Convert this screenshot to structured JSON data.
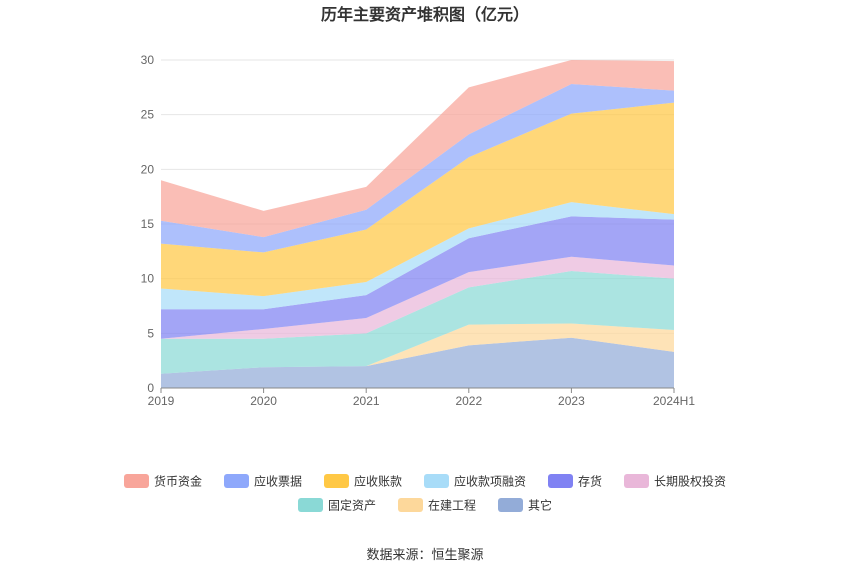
{
  "chart_data": {
    "type": "area",
    "stacked": true,
    "title": "历年主要资产堆积图（亿元）",
    "source": "数据来源：恒生聚源",
    "categories": [
      "2019",
      "2020",
      "2021",
      "2022",
      "2023",
      "2024H1"
    ],
    "ylim": [
      0,
      30
    ],
    "yticks": [
      0,
      5,
      10,
      15,
      20,
      25,
      30
    ],
    "grid": true,
    "legend_position": "bottom",
    "series": [
      {
        "name": "其它",
        "color": "#93acd8",
        "values": [
          1.3,
          1.9,
          2.0,
          3.9,
          4.6,
          3.3
        ]
      },
      {
        "name": "在建工程",
        "color": "#fdd89b",
        "values": [
          0.0,
          0.0,
          0.0,
          1.9,
          1.3,
          2.0
        ]
      },
      {
        "name": "固定资产",
        "color": "#8ad9d6",
        "values": [
          3.2,
          2.6,
          3.0,
          3.4,
          4.8,
          4.7
        ]
      },
      {
        "name": "长期股权投资",
        "color": "#e9b7d9",
        "values": [
          0.0,
          0.9,
          1.4,
          1.4,
          1.3,
          1.2
        ]
      },
      {
        "name": "存货",
        "color": "#8082f3",
        "values": [
          2.7,
          1.8,
          2.1,
          3.1,
          3.7,
          4.2
        ]
      },
      {
        "name": "应收款项融资",
        "color": "#a8dcf8",
        "values": [
          1.9,
          1.2,
          1.2,
          0.9,
          1.3,
          0.5
        ]
      },
      {
        "name": "应收账款",
        "color": "#ffc845",
        "values": [
          4.1,
          4.0,
          4.8,
          6.5,
          8.1,
          10.2
        ]
      },
      {
        "name": "应收票据",
        "color": "#8ea8fb",
        "values": [
          2.1,
          1.4,
          1.8,
          2.1,
          2.7,
          1.1
        ]
      },
      {
        "name": "货币资金",
        "color": "#f8a59a",
        "values": [
          3.7,
          2.4,
          2.1,
          4.3,
          2.2,
          2.7
        ]
      }
    ],
    "legend_order": [
      "货币资金",
      "应收票据",
      "应收账款",
      "应收款项融资",
      "存货",
      "长期股权投资",
      "固定资产",
      "在建工程",
      "其它"
    ]
  }
}
